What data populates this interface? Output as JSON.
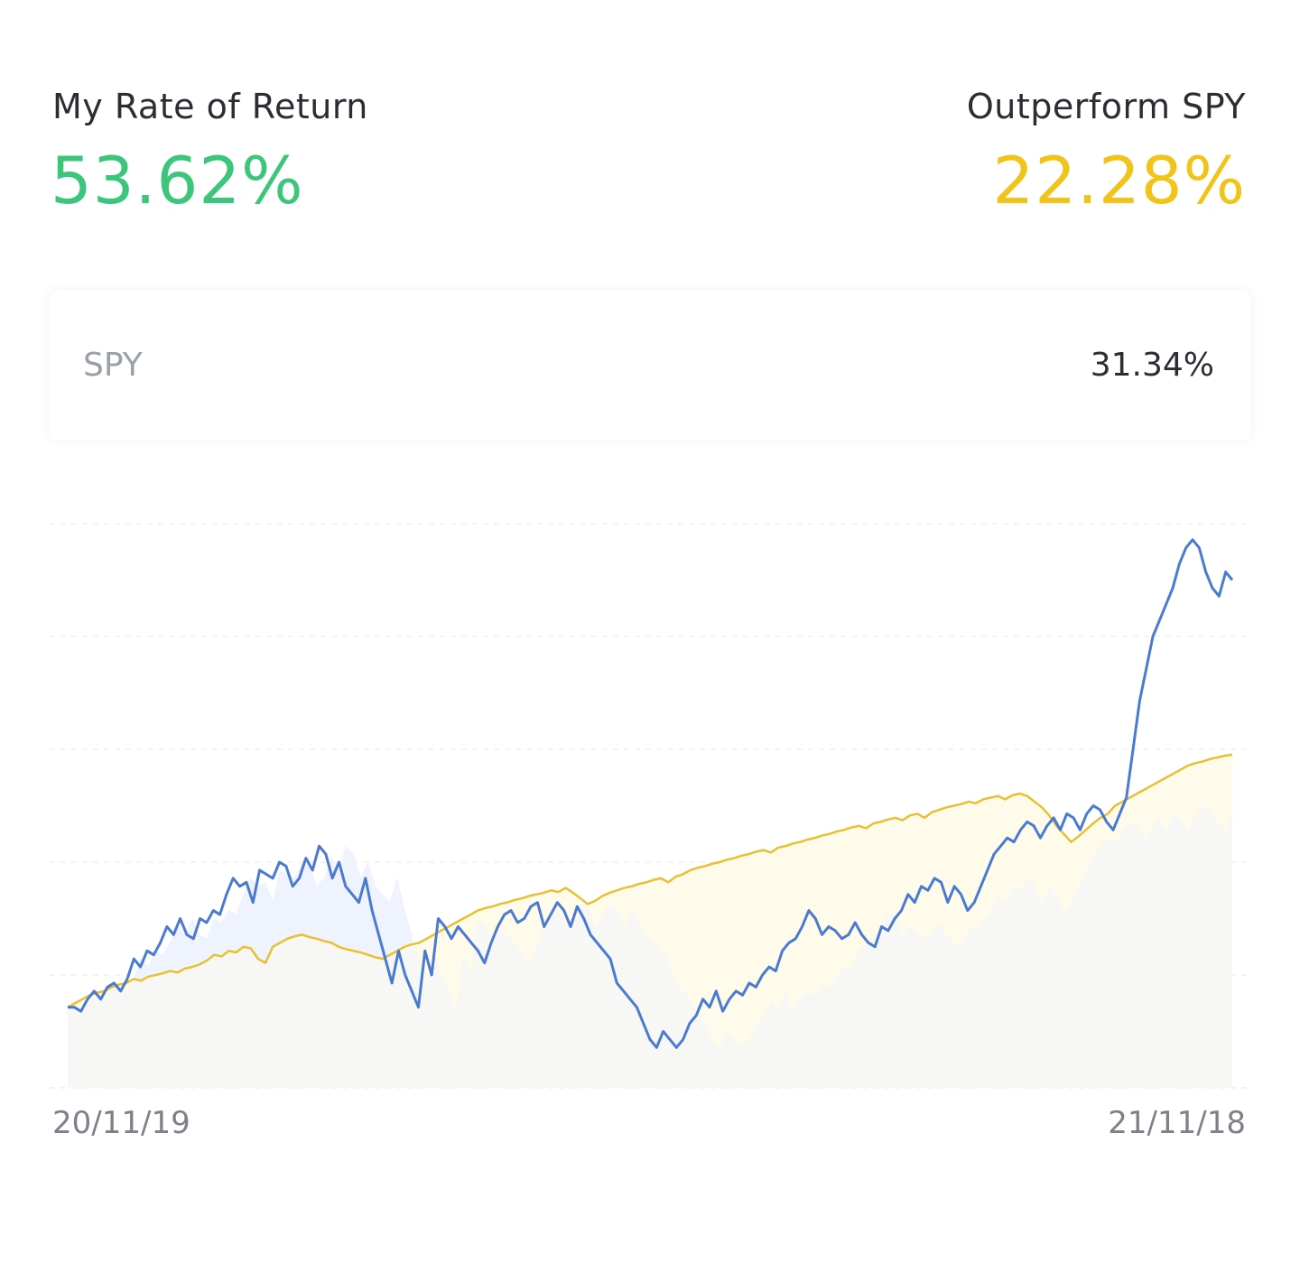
{
  "header": {
    "my_return_label": "My Rate of Return",
    "my_return_value": "53.62%",
    "outperform_label": "Outperform SPY",
    "outperform_value": "22.28%"
  },
  "benchmark_card": {
    "name": "SPY",
    "value": "31.34%"
  },
  "chart_data": {
    "type": "line",
    "title": "",
    "xlabel": "",
    "ylabel": "",
    "x_start_label": "20/11/19",
    "x_end_label": "21/11/18",
    "ylim": [
      -10,
      60
    ],
    "grid": true,
    "gridlines": [
      -10,
      4,
      18,
      32,
      46,
      60
    ],
    "series": [
      {
        "color": "#4a7bd0",
        "values": [
          0,
          0,
          -0.5,
          1,
          2,
          1,
          2.5,
          3,
          2,
          3.5,
          6,
          5,
          7,
          6.5,
          8,
          10,
          9,
          11,
          9,
          8.5,
          11,
          10.5,
          12,
          11.5,
          14,
          16,
          15,
          15.5,
          13,
          17,
          16.5,
          16,
          18,
          17.5,
          15,
          16,
          18.5,
          17,
          20,
          19,
          16,
          18,
          15,
          14,
          13,
          16,
          12,
          9,
          6,
          3,
          7,
          4,
          2,
          0,
          7,
          4,
          11,
          10,
          8.5,
          10,
          9,
          8,
          7,
          5.5,
          8,
          10,
          11.5,
          12,
          10.5,
          11,
          12.5,
          13,
          10,
          11.5,
          13,
          12,
          10,
          12.5,
          11,
          9,
          8,
          7,
          6,
          3,
          2,
          1,
          0,
          -2,
          -4,
          -5,
          -3,
          -4,
          -5,
          -4,
          -2,
          -1,
          1,
          0,
          2,
          -0.5,
          1,
          2,
          1.5,
          3,
          2.5,
          4,
          5,
          4.5,
          7,
          8,
          8.5,
          10,
          12,
          11,
          9,
          10,
          9.5,
          8.5,
          9,
          10.5,
          9,
          8,
          7.5,
          10,
          9.5,
          11,
          12,
          14,
          13,
          15,
          14.5,
          16,
          15.5,
          13,
          15,
          14,
          12,
          13,
          15,
          17,
          19,
          20,
          21,
          20.5,
          22,
          23,
          22.5,
          21,
          22.5,
          23.5,
          22,
          24,
          23.5,
          22,
          24,
          25,
          24.5,
          23,
          22,
          24,
          26,
          32,
          38,
          42,
          46,
          48,
          50,
          52,
          55,
          57,
          58,
          57,
          54,
          52,
          51,
          54,
          53
        ]
      },
      {
        "color": "#e8c030",
        "values": [
          0,
          0.5,
          1,
          1.5,
          1.8,
          2,
          2.5,
          2.8,
          3,
          3.5,
          3.3,
          3.8,
          4,
          4.2,
          4.5,
          4.3,
          4.8,
          5,
          5.3,
          5.8,
          6.5,
          6.3,
          7,
          6.8,
          7.5,
          7.3,
          6,
          5.5,
          7.5,
          8,
          8.5,
          8.8,
          9,
          8.7,
          8.5,
          8.2,
          8,
          7.5,
          7.2,
          7,
          6.8,
          6.5,
          6.2,
          6,
          6.5,
          7,
          7.5,
          7.8,
          8,
          8.5,
          9,
          9.5,
          10,
          10.5,
          11,
          11.5,
          12,
          12.3,
          12.5,
          12.8,
          13,
          13.3,
          13.5,
          13.8,
          14,
          14.2,
          14.5,
          14.3,
          14.8,
          14.2,
          13.5,
          12.8,
          13.2,
          13.8,
          14.2,
          14.5,
          14.8,
          15,
          15.3,
          15.5,
          15.8,
          16,
          15.5,
          16.2,
          16.5,
          17,
          17.3,
          17.5,
          17.8,
          18,
          18.3,
          18.5,
          18.8,
          19,
          19.3,
          19.5,
          19.2,
          19.8,
          20,
          20.3,
          20.5,
          20.8,
          21,
          21.3,
          21.5,
          21.8,
          22,
          22.3,
          22.5,
          22.2,
          22.8,
          23,
          23.3,
          23.5,
          23.2,
          23.8,
          24,
          23.5,
          24.2,
          24.5,
          24.8,
          25,
          25.2,
          25.5,
          25.3,
          25.8,
          26,
          26.2,
          25.8,
          26.3,
          26.5,
          26.2,
          25.5,
          24.8,
          23.8,
          22.5,
          21.5,
          20.5,
          21.2,
          22,
          22.8,
          23.5,
          24,
          25,
          25.5,
          26,
          26.5,
          27,
          27.5,
          28,
          28.5,
          29,
          29.5,
          30,
          30.3,
          30.5,
          30.8,
          31,
          31.2,
          31.34
        ]
      }
    ]
  },
  "colors": {
    "my_return": "#3cc67c",
    "outperform": "#f0c419",
    "my_line": "#4a7bd0",
    "spy_line": "#e8c030"
  }
}
